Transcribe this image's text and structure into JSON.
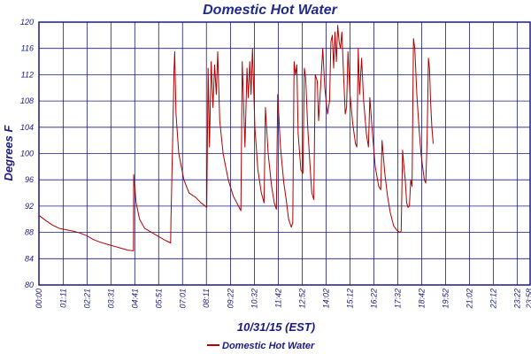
{
  "chart_data": {
    "type": "line",
    "title": "Domestic Hot Water",
    "xlabel": "10/31/15 (EST)",
    "ylabel": "Degrees F",
    "ylim": [
      80,
      120
    ],
    "yticks": [
      80,
      84,
      88,
      92,
      96,
      100,
      104,
      108,
      112,
      116,
      120
    ],
    "xlim": [
      0,
      1440
    ],
    "xticks": [
      {
        "label": "00:00",
        "t": 0
      },
      {
        "label": "01:11",
        "t": 71
      },
      {
        "label": "02:21",
        "t": 141
      },
      {
        "label": "03:31",
        "t": 211
      },
      {
        "label": "04:41",
        "t": 281
      },
      {
        "label": "05:51",
        "t": 351
      },
      {
        "label": "07:01",
        "t": 421
      },
      {
        "label": "08:11",
        "t": 491
      },
      {
        "label": "09:22",
        "t": 562
      },
      {
        "label": "10:32",
        "t": 632
      },
      {
        "label": "11:42",
        "t": 702
      },
      {
        "label": "12:52",
        "t": 772
      },
      {
        "label": "14:02",
        "t": 842
      },
      {
        "label": "15:12",
        "t": 912
      },
      {
        "label": "16:22",
        "t": 982
      },
      {
        "label": "17:32",
        "t": 1052
      },
      {
        "label": "18:42",
        "t": 1122
      },
      {
        "label": "19:52",
        "t": 1192
      },
      {
        "label": "21:02",
        "t": 1262
      },
      {
        "label": "22:12",
        "t": 1332
      },
      {
        "label": "23:22",
        "t": 1402
      },
      {
        "label": "23:58",
        "t": 1438
      }
    ],
    "grid": true,
    "legend": "bottom-center",
    "series": [
      {
        "name": "Domestic Hot Water",
        "color": "#b00000",
        "points": [
          [
            0,
            90.6
          ],
          [
            20,
            89.8
          ],
          [
            40,
            89.1
          ],
          [
            60,
            88.6
          ],
          [
            80,
            88.4
          ],
          [
            100,
            88.2
          ],
          [
            120,
            87.9
          ],
          [
            140,
            87.5
          ],
          [
            160,
            86.9
          ],
          [
            180,
            86.5
          ],
          [
            200,
            86.2
          ],
          [
            220,
            85.9
          ],
          [
            240,
            85.6
          ],
          [
            260,
            85.3
          ],
          [
            277,
            85.2
          ],
          [
            278,
            96.8
          ],
          [
            285,
            92.5
          ],
          [
            295,
            90.0
          ],
          [
            310,
            88.6
          ],
          [
            330,
            88.0
          ],
          [
            350,
            87.4
          ],
          [
            370,
            86.8
          ],
          [
            386,
            86.4
          ],
          [
            387,
            90.0
          ],
          [
            392,
            102.0
          ],
          [
            396,
            112.5
          ],
          [
            398,
            115.5
          ],
          [
            402,
            106.0
          ],
          [
            410,
            100.0
          ],
          [
            425,
            96.0
          ],
          [
            440,
            94.0
          ],
          [
            460,
            93.3
          ],
          [
            475,
            92.5
          ],
          [
            488,
            92.0
          ],
          [
            492,
            91.8
          ],
          [
            496,
            113.0
          ],
          [
            500,
            101.0
          ],
          [
            505,
            114.0
          ],
          [
            510,
            107.0
          ],
          [
            515,
            113.5
          ],
          [
            520,
            109.0
          ],
          [
            524,
            115.5
          ],
          [
            530,
            105.0
          ],
          [
            540,
            100.0
          ],
          [
            555,
            96.0
          ],
          [
            570,
            93.5
          ],
          [
            585,
            92.0
          ],
          [
            592,
            91.3
          ],
          [
            596,
            114.0
          ],
          [
            604,
            101.0
          ],
          [
            610,
            113.0
          ],
          [
            614,
            108.5
          ],
          [
            618,
            114.0
          ],
          [
            622,
            109.0
          ],
          [
            626,
            116.0
          ],
          [
            633,
            104.0
          ],
          [
            642,
            97.5
          ],
          [
            652,
            94.0
          ],
          [
            660,
            92.5
          ],
          [
            664,
            107.0
          ],
          [
            672,
            100.0
          ],
          [
            682,
            95.0
          ],
          [
            690,
            92.5
          ],
          [
            696,
            91.5
          ],
          [
            700,
            109.0
          ],
          [
            708,
            101.0
          ],
          [
            718,
            95.5
          ],
          [
            725,
            93.0
          ],
          [
            732,
            90.0
          ],
          [
            740,
            88.8
          ],
          [
            744,
            89.5
          ],
          [
            748,
            114.0
          ],
          [
            752,
            112.0
          ],
          [
            756,
            113.5
          ],
          [
            760,
            103.0
          ],
          [
            768,
            97.5
          ],
          [
            774,
            97.0
          ],
          [
            778,
            113.0
          ],
          [
            782,
            111.5
          ],
          [
            788,
            104.0
          ],
          [
            795,
            98.0
          ],
          [
            800,
            94.0
          ],
          [
            806,
            93.0
          ],
          [
            810,
            112.0
          ],
          [
            816,
            111.0
          ],
          [
            820,
            105.0
          ],
          [
            826,
            110.5
          ],
          [
            832,
            116.0
          ],
          [
            838,
            110.0
          ],
          [
            846,
            106.0
          ],
          [
            852,
            108.0
          ],
          [
            856,
            117.0
          ],
          [
            860,
            118.0
          ],
          [
            864,
            113.0
          ],
          [
            868,
            118.5
          ],
          [
            872,
            114.0
          ],
          [
            876,
            119.5
          ],
          [
            880,
            117.0
          ],
          [
            884,
            116.0
          ],
          [
            888,
            118.5
          ],
          [
            893,
            112.0
          ],
          [
            898,
            106.0
          ],
          [
            902,
            107.0
          ],
          [
            906,
            115.5
          ],
          [
            912,
            109.0
          ],
          [
            920,
            104.5
          ],
          [
            928,
            101.5
          ],
          [
            932,
            101.0
          ],
          [
            936,
            116.0
          ],
          [
            940,
            109.0
          ],
          [
            946,
            114.5
          ],
          [
            952,
            108.0
          ],
          [
            960,
            103.0
          ],
          [
            966,
            101.0
          ],
          [
            970,
            108.5
          ],
          [
            978,
            103.0
          ],
          [
            986,
            98.0
          ],
          [
            996,
            95.0
          ],
          [
            1002,
            94.5
          ],
          [
            1006,
            102.0
          ],
          [
            1014,
            97.0
          ],
          [
            1022,
            93.5
          ],
          [
            1030,
            91.0
          ],
          [
            1040,
            89.0
          ],
          [
            1050,
            88.3
          ],
          [
            1058,
            88.0
          ],
          [
            1062,
            88.2
          ],
          [
            1066,
            100.5
          ],
          [
            1070,
            98.0
          ],
          [
            1074,
            96.0
          ],
          [
            1078,
            92.5
          ],
          [
            1082,
            91.8
          ],
          [
            1086,
            92.0
          ],
          [
            1090,
            96.0
          ],
          [
            1094,
            95.0
          ],
          [
            1098,
            117.5
          ],
          [
            1102,
            116.0
          ],
          [
            1108,
            109.0
          ],
          [
            1114,
            104.0
          ],
          [
            1120,
            100.0
          ],
          [
            1126,
            97.5
          ],
          [
            1130,
            96.0
          ],
          [
            1134,
            95.5
          ],
          [
            1138,
            102.0
          ],
          [
            1142,
            114.5
          ],
          [
            1145,
            113.0
          ],
          [
            1148,
            108.0
          ],
          [
            1152,
            104.0
          ],
          [
            1156,
            101.5
          ]
        ]
      }
    ]
  }
}
